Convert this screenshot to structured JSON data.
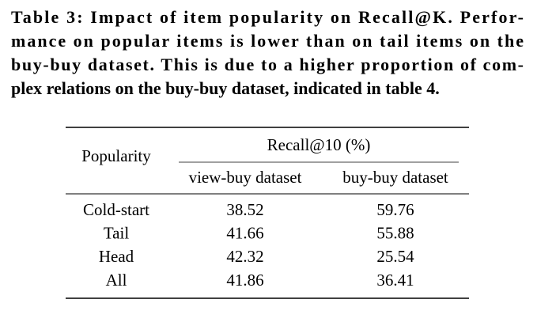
{
  "caption": {
    "lines": [
      "Table 3: Impact of item popularity on Recall@K. Perfor-",
      "mance on popular items is lower than on tail items on the",
      "buy-buy dataset. This is due to a higher proportion of com-",
      "plex relations on the buy-buy dataset, indicated in table 4."
    ]
  },
  "table": {
    "row_header": "Popularity",
    "group_header": "Recall@10 (%)",
    "columns": [
      "view-buy dataset",
      "buy-buy dataset"
    ],
    "rows": [
      [
        "Cold-start",
        38.52,
        59.76
      ],
      [
        "Tail",
        41.66,
        55.88
      ],
      [
        "Head",
        42.32,
        25.54
      ],
      [
        "All",
        41.86,
        36.41
      ]
    ]
  }
}
